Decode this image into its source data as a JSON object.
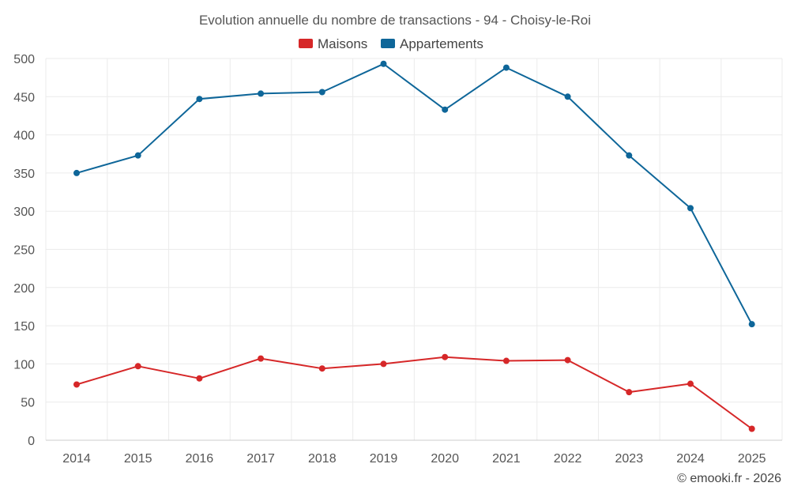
{
  "chart_data": {
    "type": "line",
    "title": "Evolution annuelle du nombre de transactions - 94 - Choisy-le-Roi",
    "xlabel": "",
    "ylabel": "",
    "categories": [
      "2014",
      "2015",
      "2016",
      "2017",
      "2018",
      "2019",
      "2020",
      "2021",
      "2022",
      "2023",
      "2024",
      "2025"
    ],
    "ylim": [
      0,
      500
    ],
    "yticks": [
      0,
      50,
      100,
      150,
      200,
      250,
      300,
      350,
      400,
      450,
      500
    ],
    "grid": true,
    "legend_position": "top-center",
    "series": [
      {
        "name": "Maisons",
        "color": "#d62728",
        "values": [
          73,
          97,
          81,
          107,
          94,
          100,
          109,
          104,
          105,
          63,
          74,
          15
        ]
      },
      {
        "name": "Appartements",
        "color": "#0e6699",
        "values": [
          350,
          373,
          447,
          454,
          456,
          493,
          433,
          488,
          450,
          373,
          304,
          152
        ]
      }
    ]
  },
  "credit": "© emooki.fr - 2026"
}
